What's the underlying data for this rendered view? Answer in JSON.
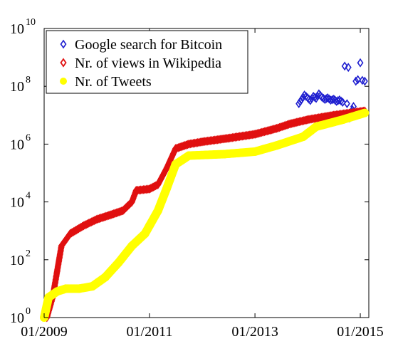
{
  "chart_data": {
    "type": "scatter",
    "title": "",
    "xlabel": "",
    "ylabel": "",
    "y_scale": "log",
    "ylim": [
      1,
      10000000000
    ],
    "xlim": [
      "2009-01-01",
      "2015-03-01"
    ],
    "grid": false,
    "legend_position": "top-left",
    "x_ticks": [
      {
        "label": "01/2009",
        "date": "2009-01-01"
      },
      {
        "label": "01/2011",
        "date": "2011-01-01"
      },
      {
        "label": "01/2013",
        "date": "2013-01-01"
      },
      {
        "label": "01/2015",
        "date": "2015-01-01"
      }
    ],
    "y_ticks": [
      {
        "base": "10",
        "exp": "0",
        "value": 1
      },
      {
        "base": "10",
        "exp": "2",
        "value": 100
      },
      {
        "base": "10",
        "exp": "4",
        "value": 10000
      },
      {
        "base": "10",
        "exp": "6",
        "value": 1000000
      },
      {
        "base": "10",
        "exp": "8",
        "value": 100000000
      },
      {
        "base": "10",
        "exp": "10",
        "value": 10000000000
      }
    ],
    "series": [
      {
        "name": "Google search for Bitcoin",
        "color": "#1f1fd0",
        "marker": "diamond",
        "points": [
          [
            "2013-11-01",
            25000000
          ],
          [
            "2013-11-20",
            35000000
          ],
          [
            "2013-12-10",
            50000000
          ],
          [
            "2014-01-01",
            40000000
          ],
          [
            "2014-01-20",
            32000000
          ],
          [
            "2014-02-10",
            45000000
          ],
          [
            "2014-03-01",
            38000000
          ],
          [
            "2014-03-20",
            55000000
          ],
          [
            "2014-04-10",
            42000000
          ],
          [
            "2014-05-01",
            35000000
          ],
          [
            "2014-05-20",
            40000000
          ],
          [
            "2014-06-10",
            33000000
          ],
          [
            "2014-07-01",
            36000000
          ],
          [
            "2014-07-20",
            30000000
          ],
          [
            "2014-08-10",
            34000000
          ],
          [
            "2014-09-01",
            28000000
          ],
          [
            "2014-09-15",
            500000000
          ],
          [
            "2014-10-01",
            25000000
          ],
          [
            "2014-10-10",
            450000000
          ],
          [
            "2014-10-20",
            8000000
          ],
          [
            "2014-11-01",
            12000000
          ],
          [
            "2014-11-15",
            20000000
          ],
          [
            "2014-12-01",
            150000000
          ],
          [
            "2014-12-15",
            170000000
          ],
          [
            "2015-01-01",
            650000000
          ],
          [
            "2015-01-15",
            160000000
          ],
          [
            "2015-02-01",
            150000000
          ]
        ]
      },
      {
        "name": "Nr. of views in Wikipedia",
        "color": "#e01010",
        "marker": "diamond",
        "points": [
          [
            "2009-01-20",
            1
          ],
          [
            "2009-03-01",
            5
          ],
          [
            "2009-04-01",
            40
          ],
          [
            "2009-05-01",
            300
          ],
          [
            "2009-07-01",
            800
          ],
          [
            "2009-10-01",
            1500
          ],
          [
            "2010-01-01",
            2500
          ],
          [
            "2010-04-01",
            3500
          ],
          [
            "2010-07-01",
            5000
          ],
          [
            "2010-09-01",
            10000
          ],
          [
            "2010-10-01",
            25000
          ],
          [
            "2011-01-01",
            28000
          ],
          [
            "2011-03-01",
            40000
          ],
          [
            "2011-05-01",
            150000
          ],
          [
            "2011-07-01",
            700000
          ],
          [
            "2011-10-01",
            1000000
          ],
          [
            "2012-01-01",
            1200000
          ],
          [
            "2012-07-01",
            1600000
          ],
          [
            "2013-01-01",
            2200000
          ],
          [
            "2013-06-01",
            3500000
          ],
          [
            "2013-09-01",
            5000000
          ],
          [
            "2014-01-01",
            7000000
          ],
          [
            "2014-07-01",
            10000000
          ],
          [
            "2015-02-01",
            14000000
          ]
        ]
      },
      {
        "name": "Nr. of Tweets",
        "color": "#ffff00",
        "marker": "circle",
        "points": [
          [
            "2009-01-01",
            1
          ],
          [
            "2009-02-01",
            5
          ],
          [
            "2009-04-01",
            8
          ],
          [
            "2009-06-01",
            10
          ],
          [
            "2009-09-01",
            10
          ],
          [
            "2009-12-01",
            12
          ],
          [
            "2010-03-01",
            25
          ],
          [
            "2010-06-01",
            80
          ],
          [
            "2010-09-01",
            300
          ],
          [
            "2010-12-01",
            800
          ],
          [
            "2011-01-01",
            1500
          ],
          [
            "2011-03-01",
            5000
          ],
          [
            "2011-05-01",
            30000
          ],
          [
            "2011-07-01",
            200000
          ],
          [
            "2011-10-01",
            400000
          ],
          [
            "2012-06-01",
            450000
          ],
          [
            "2013-01-01",
            550000
          ],
          [
            "2013-06-01",
            900000
          ],
          [
            "2013-12-01",
            1800000
          ],
          [
            "2014-03-01",
            4000000
          ],
          [
            "2014-09-01",
            7000000
          ],
          [
            "2015-02-01",
            12000000
          ]
        ]
      }
    ]
  }
}
